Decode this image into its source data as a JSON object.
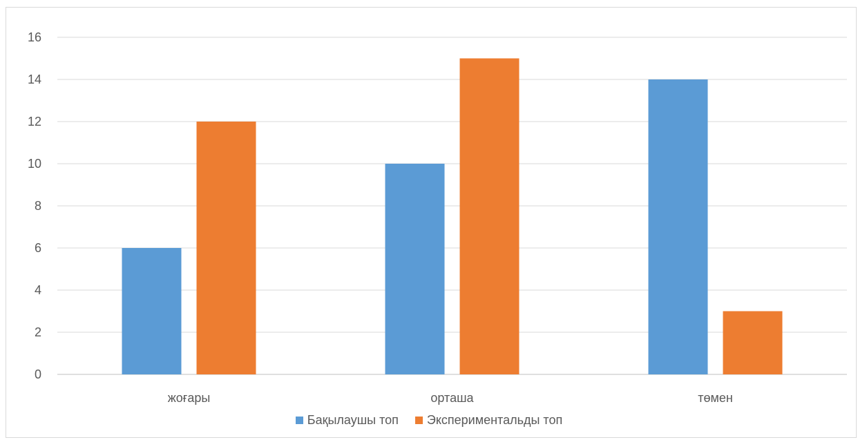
{
  "chart_data": {
    "type": "bar",
    "categories": [
      "жоғары",
      "орташа",
      "төмен"
    ],
    "series": [
      {
        "name": "Бақылаушы топ",
        "values": [
          6,
          10,
          14
        ],
        "color": "#5b9bd5"
      },
      {
        "name": "Экспериментальды топ",
        "values": [
          12,
          15,
          3
        ],
        "color": "#ed7d31"
      }
    ],
    "title": "",
    "xlabel": "",
    "ylabel": "",
    "ylim": [
      0,
      16
    ],
    "yticks": [
      0,
      2,
      4,
      6,
      8,
      10,
      12,
      14,
      16
    ],
    "grid": true,
    "legend_position": "bottom"
  }
}
